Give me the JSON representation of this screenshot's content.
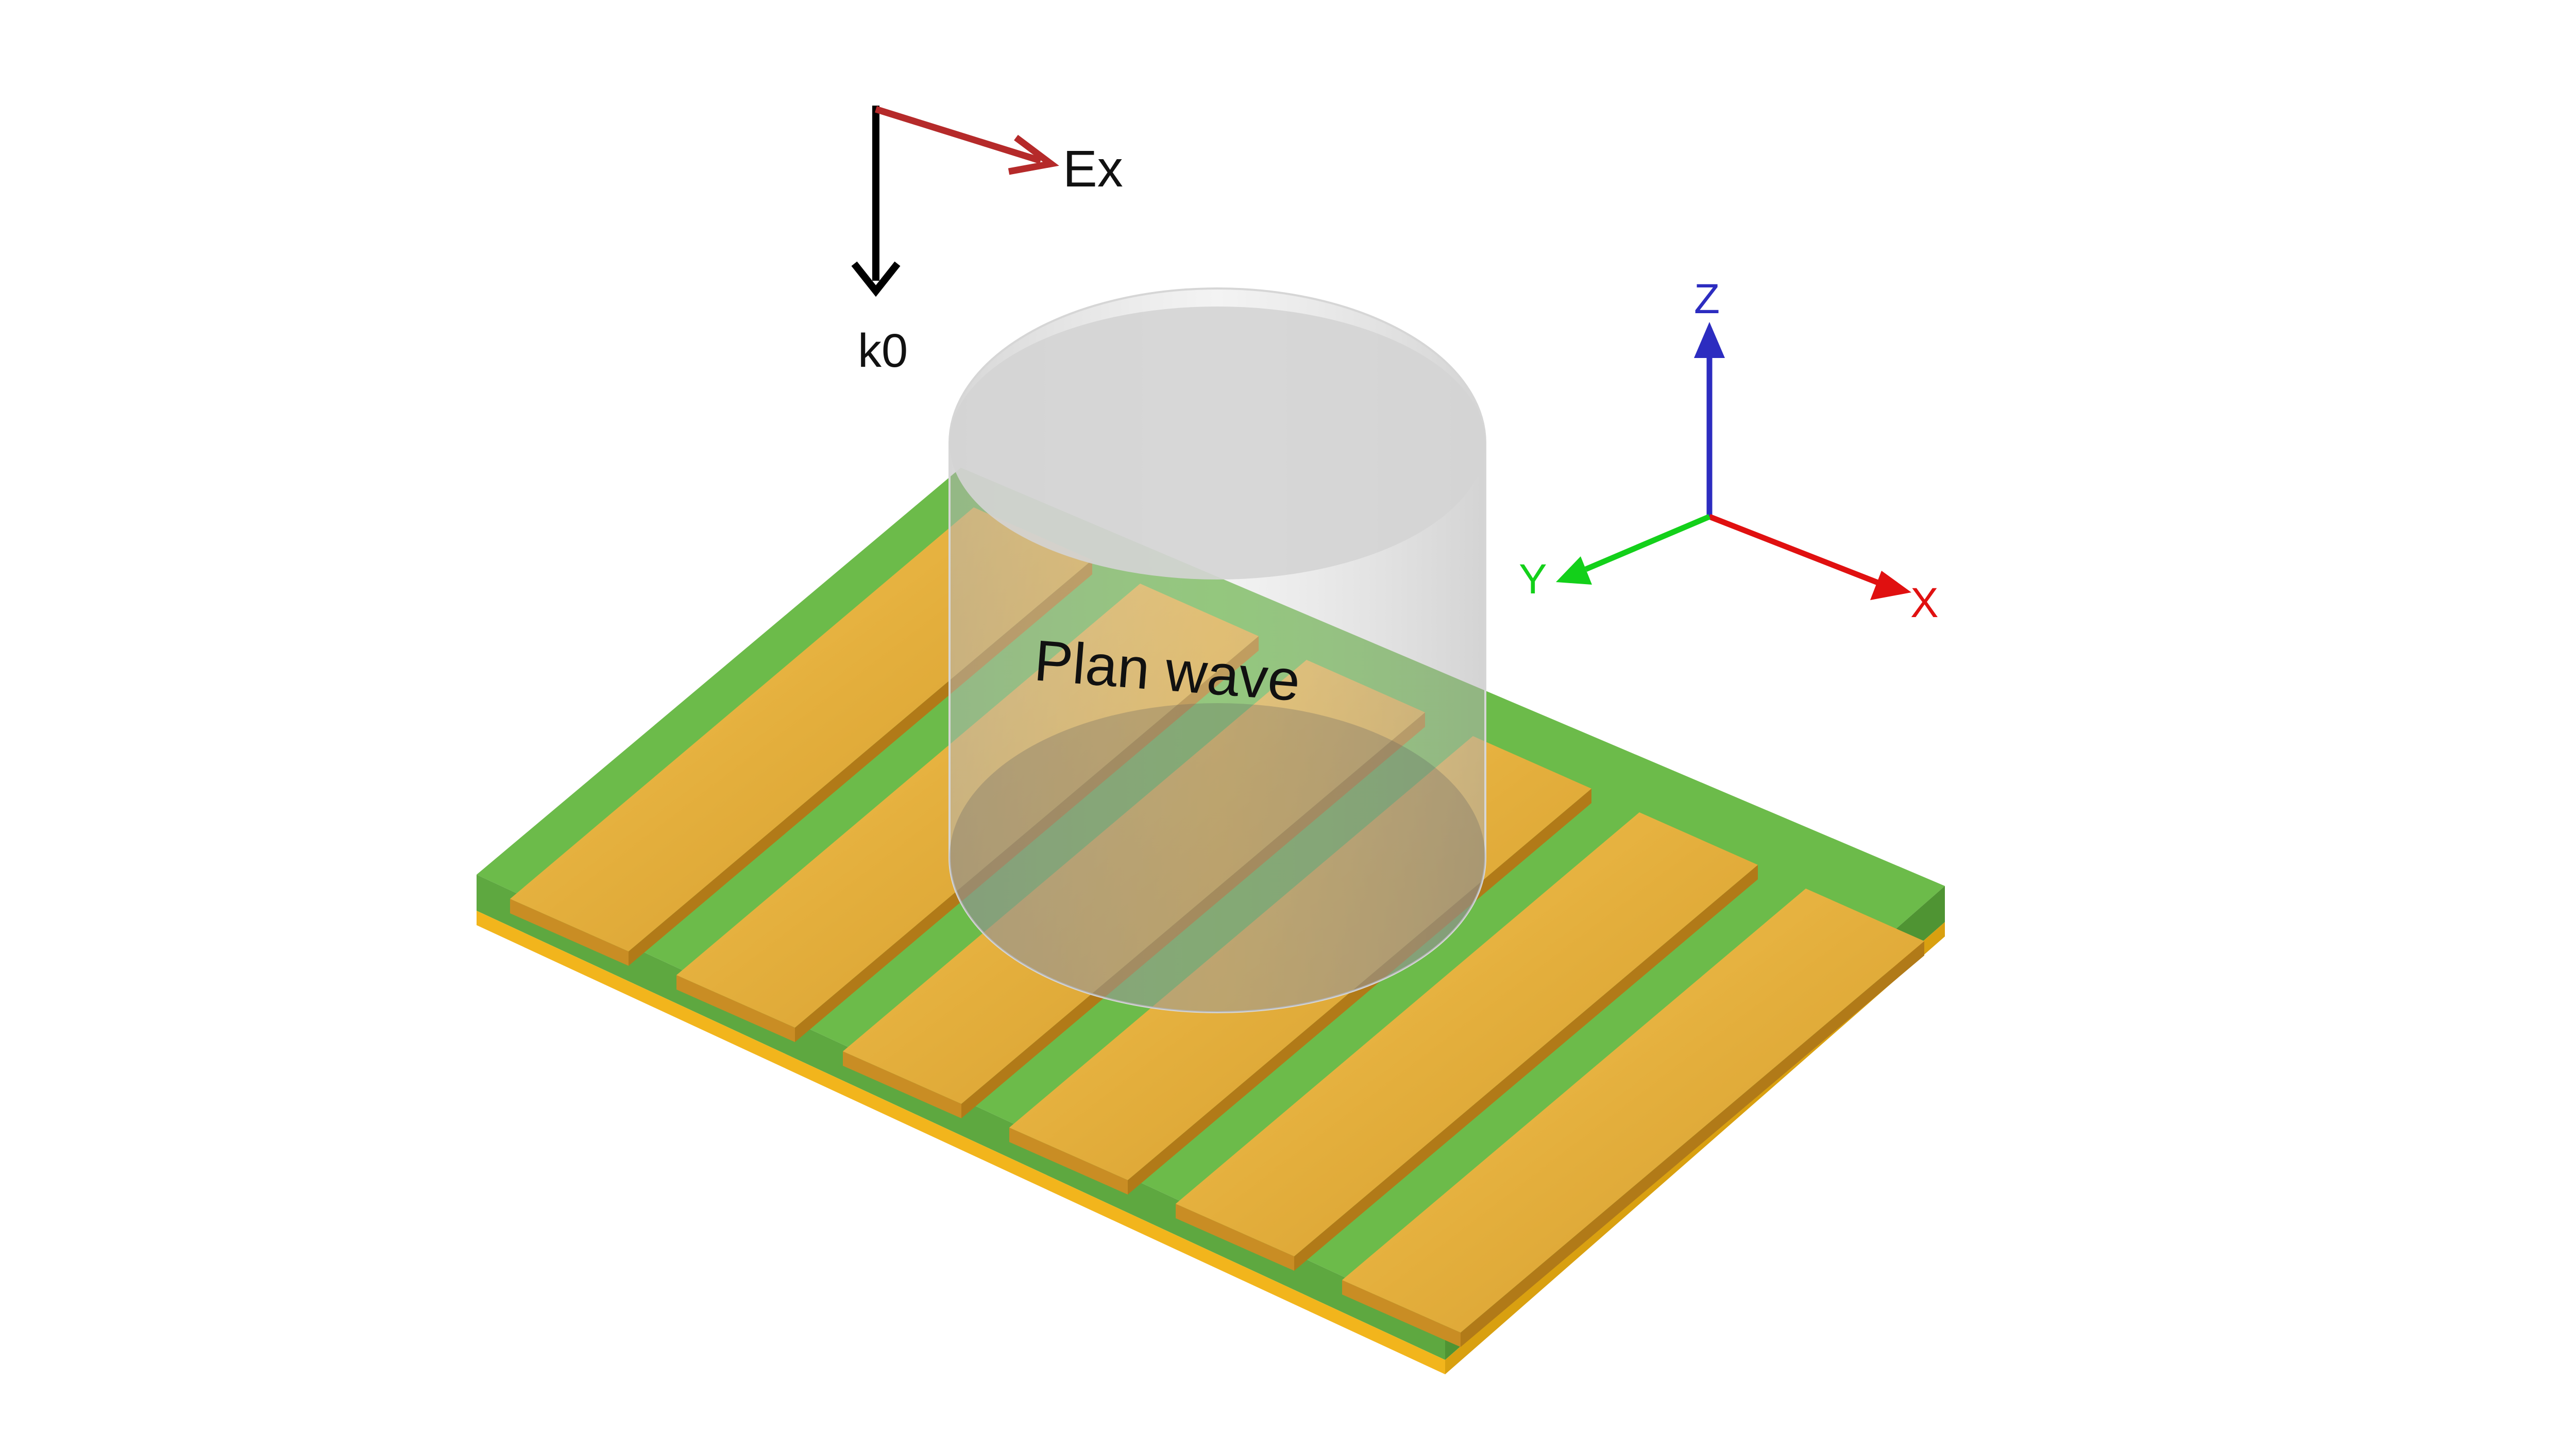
{
  "labels": {
    "ex": "Ex",
    "k0": "k0",
    "plane_wave": "Plan wave",
    "axis_x": "X",
    "axis_y": "Y",
    "axis_z": "Z"
  },
  "structure": {
    "strip_count": 6
  },
  "colors": {
    "background": "#ffffff",
    "substrate_top": "#6cbb4a",
    "substrate_side": "#5aa23c",
    "gold": "#e3ae3c",
    "gold_side": "#c98d24",
    "ground_layer": "#f2b51c",
    "e_field_arrow": "#b52a2a",
    "k_arrow": "#000000",
    "cylinder_fill": "#9a9a9a",
    "axis_x_color": "#e01010",
    "axis_y_color": "#13d01a",
    "axis_z_color": "#2c2cc0"
  }
}
